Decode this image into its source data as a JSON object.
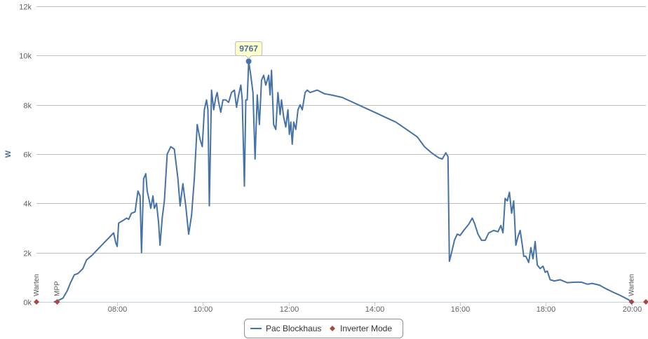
{
  "chart_data": {
    "type": "line",
    "title": "",
    "xlabel": "",
    "ylabel": "W",
    "ylim": [
      0,
      12000
    ],
    "xlim": [
      "06:07",
      "20:20"
    ],
    "grid": true,
    "legend_position": "bottom-center",
    "y_ticks": [
      {
        "value": 0,
        "label": "0k"
      },
      {
        "value": 2000,
        "label": "2k"
      },
      {
        "value": 4000,
        "label": "4k"
      },
      {
        "value": 6000,
        "label": "6k"
      },
      {
        "value": 8000,
        "label": "8k"
      },
      {
        "value": 10000,
        "label": "10k"
      },
      {
        "value": 12000,
        "label": "12k"
      }
    ],
    "x_ticks": [
      {
        "value": "08:00",
        "label": "08:00"
      },
      {
        "value": "10:00",
        "label": "10:00"
      },
      {
        "value": "12:00",
        "label": "12:00"
      },
      {
        "value": "14:00",
        "label": "14:00"
      },
      {
        "value": "16:00",
        "label": "16:00"
      },
      {
        "value": "18:00",
        "label": "18:00"
      },
      {
        "value": "20:00",
        "label": "20:00"
      }
    ],
    "series": [
      {
        "name": "Pac Blockhaus",
        "color": "#4572A7",
        "points": [
          [
            "06:32",
            0
          ],
          [
            "06:37",
            50
          ],
          [
            "06:44",
            150
          ],
          [
            "06:50",
            450
          ],
          [
            "06:55",
            800
          ],
          [
            "07:00",
            1100
          ],
          [
            "07:05",
            1150
          ],
          [
            "07:12",
            1350
          ],
          [
            "07:17",
            1700
          ],
          [
            "07:25",
            1900
          ],
          [
            "07:35",
            2200
          ],
          [
            "07:45",
            2500
          ],
          [
            "07:55",
            2800
          ],
          [
            "07:58",
            2400
          ],
          [
            "08:00",
            2250
          ],
          [
            "08:02",
            3200
          ],
          [
            "08:08",
            3300
          ],
          [
            "08:13",
            3400
          ],
          [
            "08:16",
            3350
          ],
          [
            "08:20",
            3600
          ],
          [
            "08:25",
            3650
          ],
          [
            "08:29",
            4500
          ],
          [
            "08:32",
            4300
          ],
          [
            "08:34",
            2000
          ],
          [
            "08:37",
            5000
          ],
          [
            "08:40",
            5200
          ],
          [
            "08:42",
            4500
          ],
          [
            "08:45",
            4100
          ],
          [
            "08:47",
            3800
          ],
          [
            "08:50",
            4300
          ],
          [
            "08:52",
            3800
          ],
          [
            "08:55",
            4000
          ],
          [
            "08:58",
            3200
          ],
          [
            "09:00",
            2300
          ],
          [
            "09:03",
            3400
          ],
          [
            "09:06",
            4100
          ],
          [
            "09:10",
            6000
          ],
          [
            "09:15",
            6300
          ],
          [
            "09:20",
            6200
          ],
          [
            "09:25",
            5000
          ],
          [
            "09:28",
            3900
          ],
          [
            "09:32",
            4800
          ],
          [
            "09:36",
            3900
          ],
          [
            "09:40",
            2750
          ],
          [
            "09:44",
            3500
          ],
          [
            "09:48",
            5000
          ],
          [
            "09:52",
            7200
          ],
          [
            "09:56",
            6600
          ],
          [
            "09:59",
            6300
          ],
          [
            "10:02",
            7800
          ],
          [
            "10:05",
            8200
          ],
          [
            "10:07",
            7800
          ],
          [
            "10:09",
            3900
          ],
          [
            "10:12",
            8600
          ],
          [
            "10:15",
            7800
          ],
          [
            "10:18",
            8300
          ],
          [
            "10:20",
            8500
          ],
          [
            "10:22",
            8100
          ],
          [
            "10:25",
            7700
          ],
          [
            "10:28",
            8200
          ],
          [
            "10:32",
            8200
          ],
          [
            "10:36",
            8100
          ],
          [
            "10:40",
            8500
          ],
          [
            "10:44",
            8600
          ],
          [
            "10:47",
            7900
          ],
          [
            "10:50",
            8400
          ],
          [
            "10:53",
            8800
          ],
          [
            "10:55",
            8200
          ],
          [
            "10:58",
            4700
          ],
          [
            "11:00",
            8200
          ],
          [
            "11:02",
            8200
          ],
          [
            "11:04",
            9767
          ],
          [
            "11:07",
            9200
          ],
          [
            "11:10",
            8500
          ],
          [
            "11:13",
            5800
          ],
          [
            "11:16",
            8400
          ],
          [
            "11:19",
            7200
          ],
          [
            "11:22",
            9000
          ],
          [
            "11:25",
            9200
          ],
          [
            "11:28",
            8800
          ],
          [
            "11:32",
            9200
          ],
          [
            "11:34",
            8400
          ],
          [
            "11:36",
            9400
          ],
          [
            "11:39",
            7200
          ],
          [
            "11:42",
            7000
          ],
          [
            "11:45",
            8500
          ],
          [
            "11:48",
            7600
          ],
          [
            "11:50",
            8200
          ],
          [
            "11:53",
            7500
          ],
          [
            "11:56",
            7100
          ],
          [
            "11:59",
            7800
          ],
          [
            "12:01",
            6800
          ],
          [
            "12:03",
            7300
          ],
          [
            "12:05",
            6400
          ],
          [
            "12:07",
            7300
          ],
          [
            "12:10",
            7000
          ],
          [
            "12:13",
            7800
          ],
          [
            "12:16",
            8000
          ],
          [
            "12:19",
            7800
          ],
          [
            "12:23",
            8500
          ],
          [
            "12:26",
            8600
          ],
          [
            "12:30",
            8500
          ],
          [
            "12:40",
            8600
          ],
          [
            "12:50",
            8450
          ],
          [
            "13:00",
            8400
          ],
          [
            "13:15",
            8300
          ],
          [
            "13:30",
            8100
          ],
          [
            "13:45",
            7900
          ],
          [
            "14:00",
            7700
          ],
          [
            "14:15",
            7500
          ],
          [
            "14:30",
            7300
          ],
          [
            "14:45",
            7000
          ],
          [
            "15:00",
            6700
          ],
          [
            "15:10",
            6300
          ],
          [
            "15:20",
            6050
          ],
          [
            "15:30",
            5850
          ],
          [
            "15:35",
            5800
          ],
          [
            "15:40",
            6050
          ],
          [
            "15:43",
            5900
          ],
          [
            "15:45",
            1650
          ],
          [
            "15:48",
            2000
          ],
          [
            "15:52",
            2500
          ],
          [
            "15:56",
            2750
          ],
          [
            "16:00",
            2700
          ],
          [
            "16:05",
            2900
          ],
          [
            "16:12",
            3150
          ],
          [
            "16:17",
            3400
          ],
          [
            "16:20",
            3200
          ],
          [
            "16:25",
            2750
          ],
          [
            "16:30",
            2500
          ],
          [
            "16:35",
            2500
          ],
          [
            "16:40",
            2800
          ],
          [
            "16:47",
            2900
          ],
          [
            "16:53",
            2850
          ],
          [
            "16:57",
            3100
          ],
          [
            "17:00",
            2800
          ],
          [
            "17:03",
            4200
          ],
          [
            "17:06",
            4100
          ],
          [
            "17:09",
            4450
          ],
          [
            "17:12",
            3600
          ],
          [
            "17:15",
            4100
          ],
          [
            "17:18",
            2300
          ],
          [
            "17:21",
            2650
          ],
          [
            "17:24",
            2900
          ],
          [
            "17:27",
            2300
          ],
          [
            "17:29",
            1850
          ],
          [
            "17:32",
            1850
          ],
          [
            "17:36",
            1600
          ],
          [
            "17:39",
            2200
          ],
          [
            "17:42",
            1750
          ],
          [
            "17:45",
            2450
          ],
          [
            "17:48",
            1500
          ],
          [
            "17:52",
            1350
          ],
          [
            "17:56",
            1450
          ],
          [
            "17:59",
            1200
          ],
          [
            "18:02",
            1250
          ],
          [
            "18:06",
            900
          ],
          [
            "18:12",
            850
          ],
          [
            "18:20",
            900
          ],
          [
            "18:30",
            780
          ],
          [
            "18:40",
            800
          ],
          [
            "18:50",
            800
          ],
          [
            "18:58",
            720
          ],
          [
            "19:05",
            750
          ],
          [
            "19:15",
            680
          ],
          [
            "19:25",
            520
          ],
          [
            "19:35",
            380
          ],
          [
            "19:45",
            250
          ],
          [
            "19:55",
            100
          ],
          [
            "20:00",
            0
          ]
        ]
      },
      {
        "name": "Inverter Mode",
        "color": "#AA4643",
        "points": [
          {
            "x": "06:07",
            "y": 0,
            "label": "Warten"
          },
          {
            "x": "06:36",
            "y": 0,
            "label": "MPP"
          },
          {
            "x": "20:00",
            "y": 0,
            "label": "Warten"
          },
          {
            "x": "20:20",
            "y": 0,
            "label": ""
          }
        ]
      }
    ],
    "annotations": [
      {
        "x": "11:04",
        "y": 9767,
        "label": "9767"
      }
    ]
  }
}
